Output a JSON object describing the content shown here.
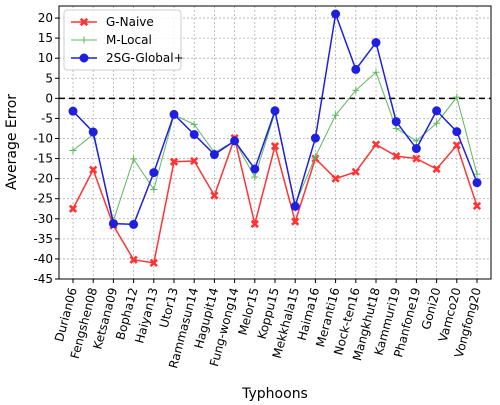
{
  "chart_data": {
    "type": "line",
    "title": "",
    "xlabel": "Typhoons",
    "ylabel": "Average Error",
    "ylim": [
      -45,
      23
    ],
    "yticks": [
      -45,
      -40,
      -35,
      -30,
      -25,
      -20,
      -15,
      -10,
      -5,
      0,
      5,
      10,
      15,
      20
    ],
    "grid": true,
    "legend_position": "top-left",
    "reference_line": {
      "y": 0,
      "style": "dashed",
      "color": "#000000"
    },
    "categories": [
      "Durian06",
      "Fengshen08",
      "Ketsana09",
      "Bopha12",
      "Haiyan13",
      "Utor13",
      "Rammasun14",
      "Hagupit14",
      "Fung-wong14",
      "Melor15",
      "Koppu15",
      "Mekkhala15",
      "Haima16",
      "Meranti16",
      "Nock-ten16",
      "Mangkhut18",
      "Kammuri19",
      "Phanfone19",
      "Goni20",
      "Vamco20",
      "Vongfong20"
    ],
    "series": [
      {
        "name": "G-Naive",
        "color": "#ff3333",
        "marker": "x-filled",
        "values": [
          -27.5,
          -17.8,
          -31.7,
          -40.2,
          -41.0,
          -15.8,
          -15.6,
          -24.2,
          -9.9,
          -31.3,
          -11.9,
          -30.7,
          -15.0,
          -20.0,
          -18.3,
          -11.5,
          -14.4,
          -15.0,
          -17.6,
          -11.7,
          -26.8
        ]
      },
      {
        "name": "M-Local",
        "color": "#5cb85c",
        "marker": "plus",
        "values": [
          -13.0,
          -9.0,
          -30.5,
          -15.1,
          -22.7,
          -4.1,
          -6.5,
          -13.5,
          -10.6,
          -19.6,
          -3.5,
          -26.4,
          -14.5,
          -4.2,
          2.0,
          6.5,
          -7.5,
          -10.6,
          -6.2,
          0.3,
          -18.9
        ]
      },
      {
        "name": "2SG-Global+",
        "color": "#1f1fe0",
        "marker": "circle",
        "values": [
          -3.2,
          -8.4,
          -31.2,
          -31.4,
          -18.5,
          -4.0,
          -9.0,
          -14.0,
          -10.6,
          -17.6,
          -3.1,
          -26.9,
          -9.9,
          21.0,
          7.2,
          13.9,
          -5.8,
          -12.5,
          -3.1,
          -8.3,
          -21.0
        ]
      }
    ]
  }
}
